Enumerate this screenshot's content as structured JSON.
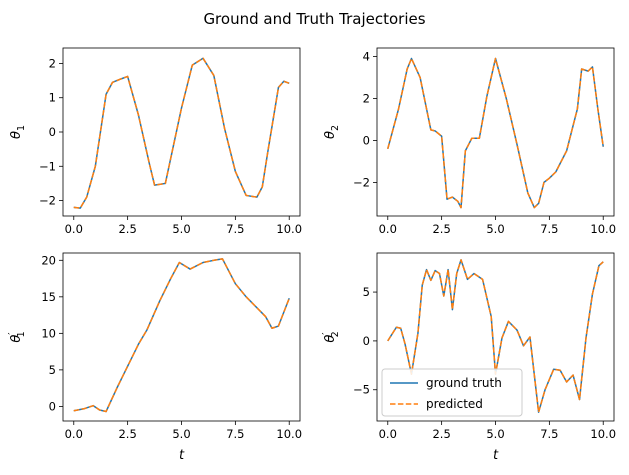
{
  "figure": {
    "title": "Ground and Truth Trajectories"
  },
  "colors": {
    "ground_truth": "#1f77b4",
    "predicted": "#ff7f0e"
  },
  "legend": {
    "placement": "lower-left",
    "entries": [
      {
        "label": "ground truth",
        "style": "solid",
        "color": "#1f77b4"
      },
      {
        "label": "predicted",
        "style": "dashed",
        "color": "#ff7f0e"
      }
    ]
  },
  "chart_data": [
    {
      "type": "line",
      "ylabel_base": "θ",
      "ylabel_sub": "1",
      "ylabel_prime": "",
      "xlabel": "",
      "xlim": [
        -0.5,
        10.5
      ],
      "ylim": [
        -2.45,
        2.45
      ],
      "xticks": [
        0.0,
        2.5,
        5.0,
        7.5,
        10.0
      ],
      "xticklabels": [
        "0.0",
        "2.5",
        "5.0",
        "7.5",
        "10.0"
      ],
      "yticks": [
        -2,
        -1,
        0,
        1,
        2
      ],
      "yticklabels": [
        "−2",
        "−1",
        "0",
        "1",
        "2"
      ],
      "x": [
        0.0,
        0.3,
        0.6,
        1.0,
        1.5,
        1.8,
        2.2,
        2.5,
        3.0,
        3.5,
        3.75,
        4.25,
        5.0,
        5.5,
        6.0,
        6.5,
        7.0,
        7.5,
        8.0,
        8.5,
        8.75,
        9.0,
        9.5,
        9.75,
        10.0
      ],
      "series": [
        {
          "name": "ground truth",
          "style": "solid",
          "values": [
            -2.2,
            -2.22,
            -1.9,
            -1.0,
            1.1,
            1.45,
            1.55,
            1.62,
            0.5,
            -0.9,
            -1.55,
            -1.5,
            0.7,
            1.95,
            2.15,
            1.65,
            0.1,
            -1.15,
            -1.85,
            -1.9,
            -1.6,
            -0.6,
            1.3,
            1.48,
            1.42
          ]
        },
        {
          "name": "predicted",
          "style": "dashed",
          "values": [
            -2.2,
            -2.22,
            -1.9,
            -1.0,
            1.1,
            1.45,
            1.55,
            1.62,
            0.5,
            -0.9,
            -1.55,
            -1.5,
            0.7,
            1.95,
            2.15,
            1.65,
            0.1,
            -1.15,
            -1.85,
            -1.9,
            -1.6,
            -0.6,
            1.3,
            1.48,
            1.42
          ]
        }
      ]
    },
    {
      "type": "line",
      "ylabel_base": "θ",
      "ylabel_sub": "2",
      "ylabel_prime": "",
      "xlabel": "",
      "xlim": [
        -0.5,
        10.5
      ],
      "ylim": [
        -3.6,
        4.4
      ],
      "xticks": [
        0.0,
        2.5,
        5.0,
        7.5,
        10.0
      ],
      "xticklabels": [
        "0.0",
        "2.5",
        "5.0",
        "7.5",
        "10.0"
      ],
      "yticks": [
        -2,
        0,
        2,
        4
      ],
      "yticklabels": [
        "−2",
        "0",
        "2",
        "4"
      ],
      "x": [
        0.0,
        0.5,
        0.9,
        1.1,
        1.5,
        2.0,
        2.2,
        2.5,
        2.75,
        3.0,
        3.25,
        3.4,
        3.6,
        3.9,
        4.25,
        4.6,
        5.0,
        5.5,
        6.0,
        6.5,
        6.8,
        7.0,
        7.25,
        7.5,
        7.8,
        8.3,
        8.8,
        9.0,
        9.3,
        9.5,
        9.75,
        10.0
      ],
      "series": [
        {
          "name": "ground truth",
          "style": "solid",
          "values": [
            -0.4,
            1.5,
            3.4,
            3.9,
            3.0,
            0.5,
            0.45,
            0.2,
            -2.8,
            -2.7,
            -2.9,
            -3.2,
            -0.5,
            0.1,
            0.1,
            2.1,
            3.9,
            2.0,
            -0.2,
            -2.5,
            -3.2,
            -3.0,
            -2.0,
            -1.8,
            -1.5,
            -0.5,
            1.5,
            3.4,
            3.3,
            3.5,
            1.5,
            -0.3
          ]
        },
        {
          "name": "predicted",
          "style": "dashed",
          "values": [
            -0.4,
            1.5,
            3.4,
            3.9,
            3.0,
            0.5,
            0.45,
            0.2,
            -2.8,
            -2.7,
            -2.9,
            -3.2,
            -0.5,
            0.1,
            0.1,
            2.1,
            3.9,
            2.0,
            -0.2,
            -2.5,
            -3.2,
            -3.0,
            -2.0,
            -1.8,
            -1.5,
            -0.5,
            1.5,
            3.4,
            3.3,
            3.5,
            1.5,
            -0.3
          ]
        }
      ]
    },
    {
      "type": "line",
      "ylabel_base": "θ",
      "ylabel_sub": "1",
      "ylabel_prime": "′",
      "xlabel": "t",
      "xlim": [
        -0.5,
        10.5
      ],
      "ylim": [
        -2.0,
        21.0
      ],
      "xticks": [
        0.0,
        2.5,
        5.0,
        7.5,
        10.0
      ],
      "xticklabels": [
        "0.0",
        "2.5",
        "5.0",
        "7.5",
        "10.0"
      ],
      "yticks": [
        0,
        5,
        10,
        15,
        20
      ],
      "yticklabels": [
        "0",
        "5",
        "10",
        "15",
        "20"
      ],
      "x": [
        0.0,
        0.5,
        0.9,
        1.2,
        1.5,
        2.0,
        2.5,
        3.0,
        3.4,
        4.0,
        4.5,
        4.9,
        5.4,
        6.0,
        6.5,
        6.9,
        7.5,
        8.0,
        8.5,
        8.9,
        9.2,
        9.5,
        10.0
      ],
      "series": [
        {
          "name": "ground truth",
          "style": "solid",
          "values": [
            -0.6,
            -0.3,
            0.1,
            -0.5,
            -0.7,
            2.5,
            5.5,
            8.5,
            10.5,
            14.5,
            17.5,
            19.7,
            18.8,
            19.7,
            20.0,
            20.2,
            16.8,
            15.0,
            13.5,
            12.3,
            10.7,
            11.0,
            14.8
          ]
        },
        {
          "name": "predicted",
          "style": "dashed",
          "values": [
            -0.6,
            -0.3,
            0.1,
            -0.5,
            -0.7,
            2.5,
            5.5,
            8.5,
            10.5,
            14.5,
            17.5,
            19.7,
            18.8,
            19.7,
            20.0,
            20.2,
            16.8,
            15.0,
            13.5,
            12.3,
            10.7,
            11.0,
            14.8
          ]
        }
      ]
    },
    {
      "type": "line",
      "ylabel_base": "θ",
      "ylabel_sub": "2",
      "ylabel_prime": "′",
      "xlabel": "t",
      "xlim": [
        -0.5,
        10.5
      ],
      "ylim": [
        -8.2,
        9.0
      ],
      "xticks": [
        0.0,
        2.5,
        5.0,
        7.5,
        10.0
      ],
      "xticklabels": [
        "0.0",
        "2.5",
        "5.0",
        "7.5",
        "10.0"
      ],
      "yticks": [
        -5,
        0,
        5
      ],
      "yticklabels": [
        "−5",
        "0",
        "5"
      ],
      "x": [
        0.0,
        0.4,
        0.6,
        0.8,
        1.1,
        1.4,
        1.6,
        1.8,
        2.0,
        2.2,
        2.4,
        2.6,
        2.8,
        3.0,
        3.2,
        3.4,
        3.7,
        4.0,
        4.4,
        4.8,
        5.0,
        5.3,
        5.6,
        6.0,
        6.3,
        6.6,
        7.0,
        7.3,
        7.7,
        8.0,
        8.3,
        8.6,
        8.9,
        9.2,
        9.5,
        9.8,
        10.0
      ],
      "series": [
        {
          "name": "ground truth",
          "style": "solid",
          "values": [
            0.0,
            1.4,
            1.3,
            -0.3,
            -3.4,
            0.8,
            5.7,
            7.3,
            6.2,
            7.2,
            6.9,
            4.6,
            7.3,
            3.2,
            6.9,
            8.3,
            6.3,
            6.9,
            6.3,
            2.5,
            -3.4,
            0.3,
            2.0,
            1.1,
            -0.5,
            0.4,
            -7.3,
            -5.0,
            -2.9,
            -3.0,
            -4.2,
            -3.5,
            -6.0,
            0.3,
            4.8,
            7.7,
            8.1
          ]
        },
        {
          "name": "predicted",
          "style": "dashed",
          "values": [
            0.0,
            1.4,
            1.3,
            -0.3,
            -3.4,
            0.8,
            5.7,
            7.3,
            6.2,
            7.2,
            6.9,
            4.6,
            7.3,
            3.2,
            6.9,
            8.3,
            6.3,
            6.9,
            6.3,
            2.5,
            -3.4,
            0.3,
            2.0,
            1.1,
            -0.5,
            0.4,
            -7.3,
            -5.0,
            -2.9,
            -3.0,
            -4.2,
            -3.5,
            -6.0,
            0.3,
            4.8,
            7.7,
            8.1
          ]
        }
      ]
    }
  ]
}
